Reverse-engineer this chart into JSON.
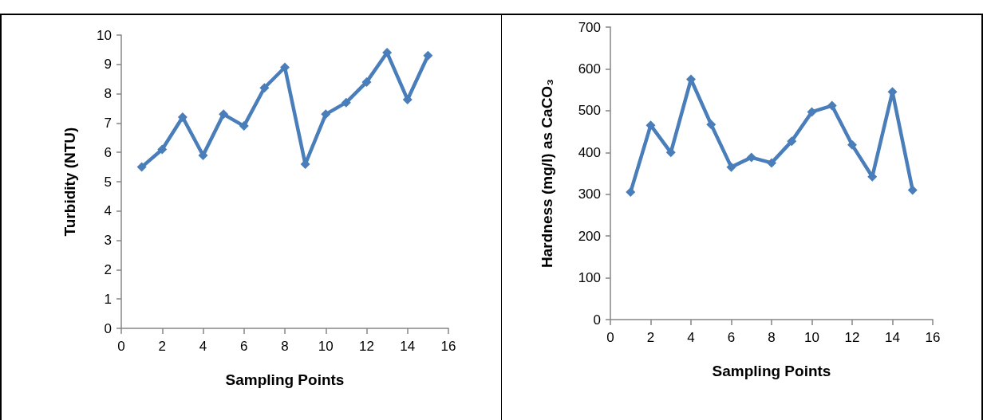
{
  "chart_data": [
    {
      "type": "line",
      "x": [
        1,
        2,
        3,
        4,
        5,
        6,
        7,
        8,
        9,
        10,
        11,
        12,
        13,
        14,
        15
      ],
      "xlabel": "Sampling Points",
      "ylabel": "Turbidity (NTU)",
      "xlim": [
        0,
        16
      ],
      "xticks": [
        0,
        2,
        4,
        6,
        8,
        10,
        12,
        14,
        16
      ],
      "ylim": [
        0,
        10
      ],
      "yticks": [
        0,
        1,
        2,
        3,
        4,
        5,
        6,
        7,
        8,
        9,
        10
      ],
      "marker": "diamond",
      "line_style": "solid",
      "series": [
        {
          "color": "#4a7ebb",
          "values": [
            5.5,
            6.1,
            7.2,
            5.9,
            7.3,
            6.9,
            8.2,
            8.9,
            5.6,
            7.3,
            7.7,
            8.4,
            9.4,
            7.8,
            9.3
          ]
        }
      ]
    },
    {
      "type": "line",
      "x": [
        1,
        2,
        3,
        4,
        5,
        6,
        7,
        8,
        9,
        10,
        11,
        12,
        13,
        14,
        15
      ],
      "xlabel": "Sampling Points",
      "ylabel": "Hardness (mg/l) as CaCO₃",
      "xlim": [
        0,
        16
      ],
      "xticks": [
        0,
        2,
        4,
        6,
        8,
        10,
        12,
        14,
        16
      ],
      "ylim": [
        0,
        700
      ],
      "yticks": [
        0,
        100,
        200,
        300,
        400,
        500,
        600,
        700
      ],
      "marker": "diamond",
      "line_style": "solid",
      "series": [
        {
          "color": "#4a7ebb",
          "values": [
            305,
            465,
            400,
            575,
            467,
            365,
            388,
            375,
            427,
            497,
            512,
            418,
            342,
            545,
            310
          ]
        }
      ]
    }
  ]
}
